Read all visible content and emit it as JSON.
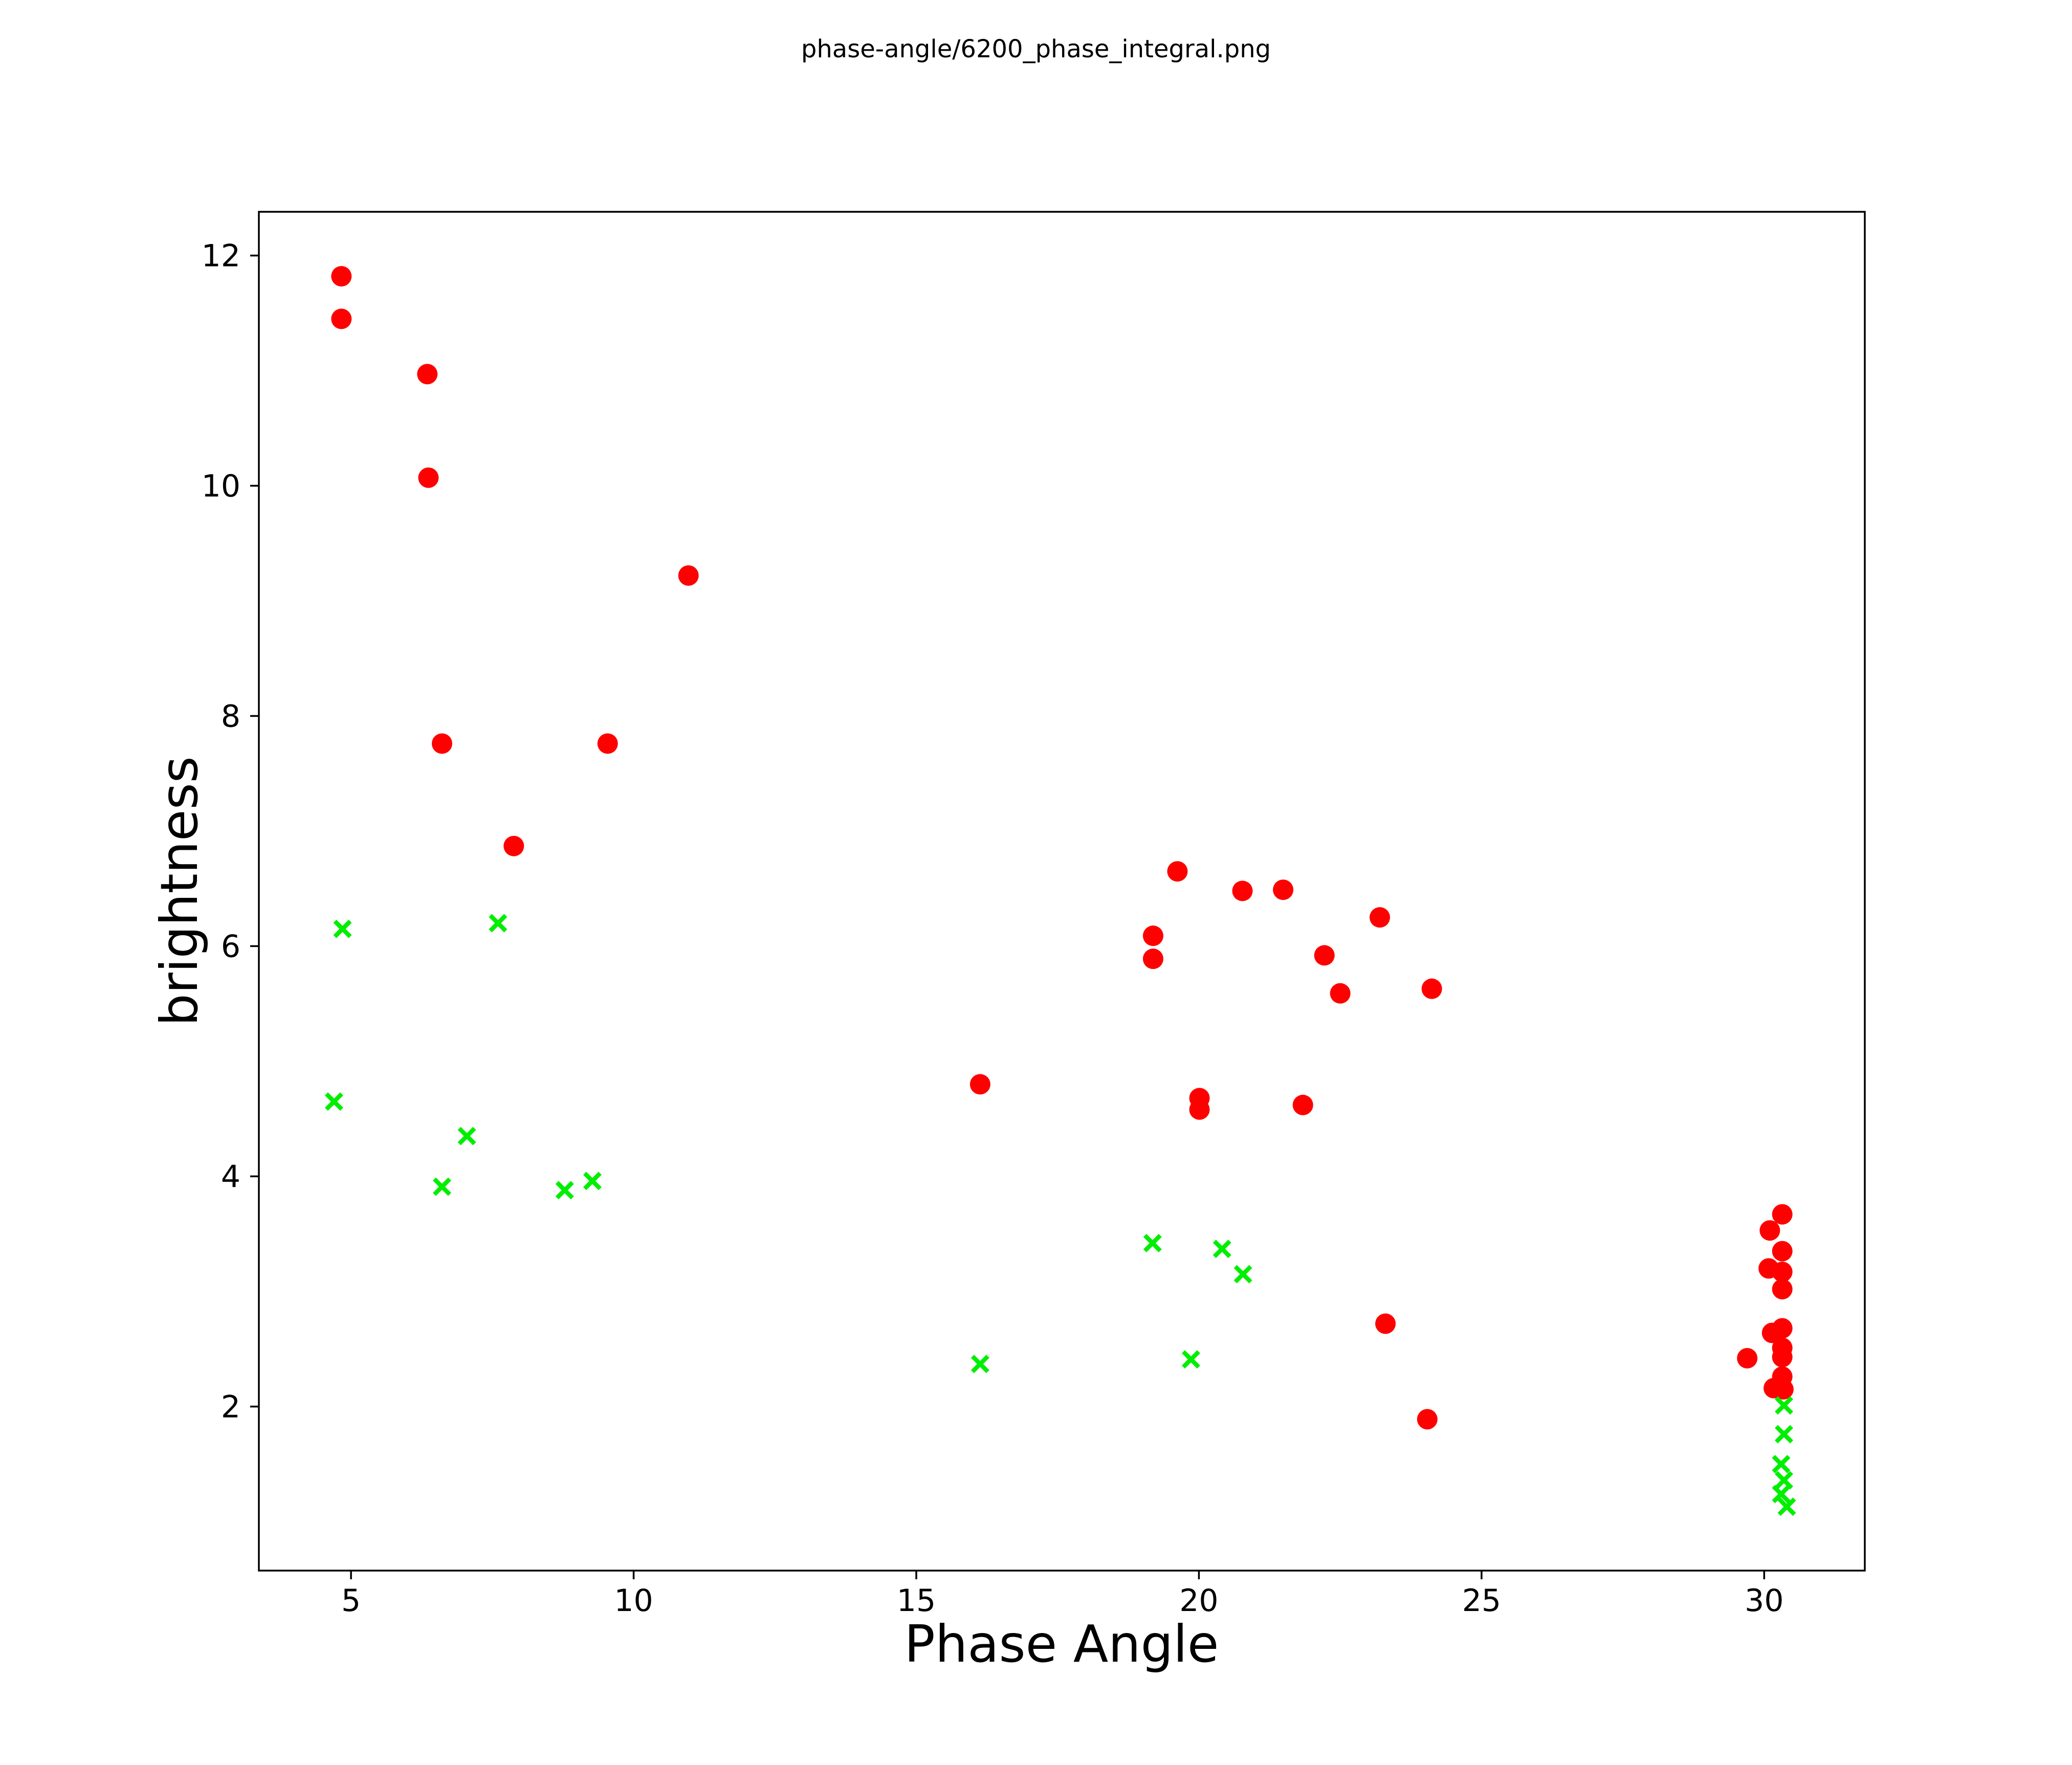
{
  "chart_data": {
    "type": "scatter",
    "title": "phase-angle/6200_phase_integral.png",
    "xlabel": "Phase Angle",
    "ylabel": "brightness",
    "xlim": [
      3.37,
      31.78
    ],
    "ylim": [
      0.575,
      12.38
    ],
    "xticks": [
      5,
      10,
      15,
      20,
      25,
      30
    ],
    "yticks": [
      2,
      4,
      6,
      8,
      10,
      12
    ],
    "grid": false,
    "legend": "none",
    "colors": {
      "background": "#ffffff",
      "axis": "#000000",
      "red_series": "#ff0000",
      "green_series": "#00ee00"
    },
    "series": [
      {
        "name": "red-circles",
        "marker": "circle",
        "color": "#ff0000",
        "marker_radius_px": 20,
        "points": [
          [
            4.83,
            11.82
          ],
          [
            4.83,
            11.45
          ],
          [
            6.35,
            10.97
          ],
          [
            6.37,
            10.07
          ],
          [
            10.97,
            9.22
          ],
          [
            6.61,
            7.76
          ],
          [
            9.54,
            7.76
          ],
          [
            7.88,
            6.87
          ],
          [
            16.13,
            4.8
          ],
          [
            19.62,
            6.65
          ],
          [
            20.77,
            6.48
          ],
          [
            21.49,
            6.49
          ],
          [
            23.2,
            6.25
          ],
          [
            19.19,
            6.09
          ],
          [
            19.19,
            5.89
          ],
          [
            22.22,
            5.92
          ],
          [
            22.5,
            5.59
          ],
          [
            24.12,
            5.63
          ],
          [
            20.01,
            4.68
          ],
          [
            20.01,
            4.58
          ],
          [
            21.84,
            4.62
          ],
          [
            23.3,
            2.72
          ],
          [
            24.04,
            1.89
          ],
          [
            30.32,
            3.67
          ],
          [
            30.1,
            3.53
          ],
          [
            30.32,
            3.35
          ],
          [
            30.08,
            3.2
          ],
          [
            30.32,
            3.17
          ],
          [
            30.32,
            3.02
          ],
          [
            30.32,
            2.68
          ],
          [
            30.14,
            2.64
          ],
          [
            30.32,
            2.51
          ],
          [
            30.32,
            2.43
          ],
          [
            29.7,
            2.42
          ],
          [
            30.32,
            2.26
          ],
          [
            30.17,
            2.16
          ],
          [
            30.34,
            2.15
          ]
        ]
      },
      {
        "name": "green-crosses",
        "marker": "x",
        "color": "#00ee00",
        "marker_half_size_px": 15,
        "marker_stroke_px": 8.5,
        "points": [
          [
            4.85,
            6.15
          ],
          [
            7.6,
            6.2
          ],
          [
            4.7,
            4.65
          ],
          [
            7.05,
            4.35
          ],
          [
            6.61,
            3.91
          ],
          [
            8.78,
            3.88
          ],
          [
            9.27,
            3.96
          ],
          [
            19.18,
            3.42
          ],
          [
            20.41,
            3.37
          ],
          [
            20.78,
            3.15
          ],
          [
            16.13,
            2.37
          ],
          [
            19.86,
            2.41
          ],
          [
            30.35,
            2.01
          ],
          [
            30.35,
            1.76
          ],
          [
            30.3,
            1.5
          ],
          [
            30.35,
            1.36
          ],
          [
            30.3,
            1.24
          ],
          [
            30.4,
            1.13
          ]
        ]
      }
    ]
  }
}
